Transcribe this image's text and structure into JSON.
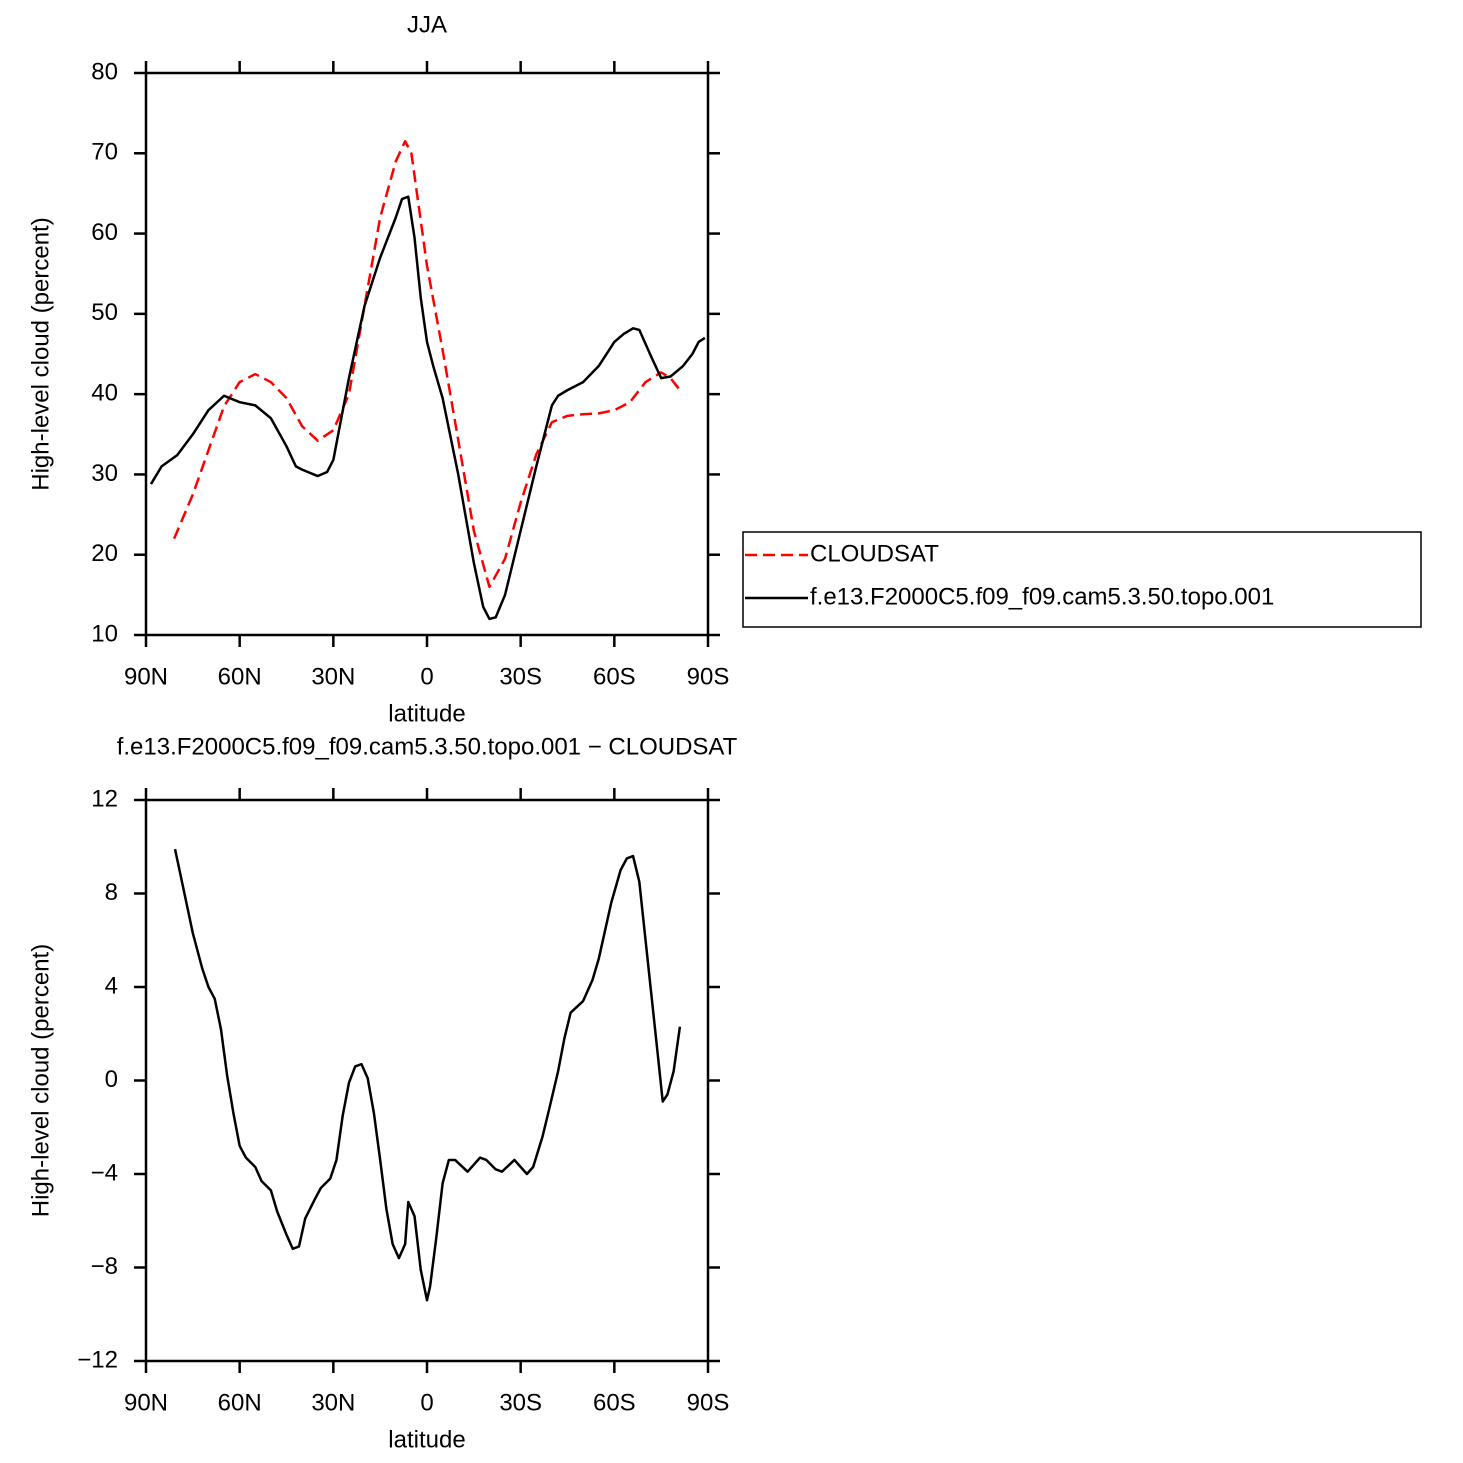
{
  "chart_data": [
    {
      "type": "line",
      "title": "JJA",
      "xlabel": "latitude",
      "ylabel": "High-level cloud (percent)",
      "xlim": [
        90,
        -90
      ],
      "xticks": [
        {
          "value": 90,
          "label": "90N"
        },
        {
          "value": 60,
          "label": "60N"
        },
        {
          "value": 30,
          "label": "30N"
        },
        0,
        {
          "value": -30,
          "label": "30S"
        },
        {
          "value": -60,
          "label": "60S"
        },
        {
          "value": -90,
          "label": "90S"
        }
      ],
      "ylim": [
        10,
        80
      ],
      "yticks": [
        10,
        20,
        30,
        40,
        50,
        60,
        70,
        80
      ],
      "legend": "right",
      "series": [
        {
          "name": "CLOUDSAT",
          "color": "#ff0000",
          "dashed": true,
          "x": [
            81,
            75,
            70,
            65,
            60,
            55,
            50,
            45,
            40,
            35,
            30,
            25,
            20,
            15,
            10,
            7,
            5,
            0,
            -5,
            -10,
            -15,
            -20,
            -25,
            -30,
            -35,
            -40,
            -45,
            -50,
            -55,
            -60,
            -65,
            -70,
            -75,
            -78,
            -81
          ],
          "values": [
            22,
            27.5,
            33,
            38.5,
            41.5,
            42.5,
            41.5,
            39.5,
            36,
            34.2,
            35.5,
            40,
            51,
            62,
            69,
            71.5,
            70,
            56,
            45.5,
            34.3,
            23,
            16,
            19.5,
            26.5,
            32.5,
            36.5,
            37.3,
            37.5,
            37.6,
            38,
            39,
            41.5,
            42.7,
            42,
            40.5
          ]
        },
        {
          "name": "f.e13.F2000C5.f09_f09.cam5.3.50.topo.001",
          "color": "#000000",
          "dashed": false,
          "x": [
            88.4,
            85,
            80,
            75,
            70,
            65,
            60,
            55,
            50,
            45,
            42,
            40,
            35,
            32,
            30,
            25,
            20,
            15,
            10,
            8,
            6,
            4,
            2,
            0,
            -2,
            -5,
            -10,
            -15,
            -18,
            -20,
            -22,
            -25,
            -30,
            -35,
            -40,
            -42,
            -45,
            -50,
            -55,
            -60,
            -63,
            -66,
            -68,
            -72,
            -75,
            -78,
            -82,
            -85,
            -87,
            -89
          ],
          "values": [
            28.8,
            31,
            32.4,
            35,
            38,
            39.8,
            39,
            38.6,
            37,
            33.5,
            31,
            30.6,
            29.8,
            30.3,
            31.8,
            42,
            51,
            57,
            62,
            64.3,
            64.6,
            59.5,
            52,
            46.5,
            43.5,
            39.5,
            30,
            19,
            13.5,
            12,
            12.2,
            15,
            23,
            31,
            38.6,
            39.8,
            40.5,
            41.5,
            43.5,
            46.5,
            47.5,
            48.2,
            48,
            44.5,
            42,
            42.2,
            43.5,
            45,
            46.5,
            47
          ]
        }
      ]
    },
    {
      "type": "line",
      "title": "f.e13.F2000C5.f09_f09.cam5.3.50.topo.001  −  CLOUDSAT",
      "xlabel": "latitude",
      "ylabel": "High-level cloud (percent)",
      "xlim": [
        90,
        -90
      ],
      "xticks": [
        {
          "value": 90,
          "label": "90N"
        },
        {
          "value": 60,
          "label": "60N"
        },
        {
          "value": 30,
          "label": "30N"
        },
        0,
        {
          "value": -30,
          "label": "30S"
        },
        {
          "value": -60,
          "label": "60S"
        },
        {
          "value": -90,
          "label": "90S"
        }
      ],
      "ylim": [
        -12,
        12
      ],
      "yticks": [
        {
          "value": -12,
          "label": "−12"
        },
        {
          "value": -8,
          "label": "−8"
        },
        {
          "value": -4,
          "label": "−4"
        },
        0,
        4,
        8,
        12
      ],
      "color": "#000000",
      "x": [
        80.7,
        78,
        75,
        72,
        70,
        68,
        66,
        64,
        62,
        60,
        58,
        55,
        53,
        50,
        48,
        45,
        43,
        41,
        39,
        36,
        34,
        31,
        29,
        27,
        25,
        23,
        21,
        19,
        17,
        15,
        13,
        11,
        9,
        7,
        6,
        4,
        2,
        0,
        -1,
        -3,
        -5,
        -7,
        -9,
        -13,
        -17,
        -19,
        -22,
        -24,
        -28,
        -32,
        -34,
        -37,
        -39,
        -42,
        -44,
        -46,
        -50,
        -53,
        -55,
        -59,
        -62,
        -64,
        -66,
        -68,
        -70,
        -72,
        -74,
        -75.5,
        -77,
        -79,
        -81
      ],
      "values": [
        9.9,
        8.2,
        6.3,
        4.8,
        4.0,
        3.5,
        2.2,
        0.2,
        -1.4,
        -2.8,
        -3.3,
        -3.7,
        -4.3,
        -4.7,
        -5.6,
        -6.6,
        -7.2,
        -7.1,
        -5.9,
        -5.1,
        -4.6,
        -4.2,
        -3.4,
        -1.5,
        -0.1,
        0.6,
        0.7,
        0.1,
        -1.4,
        -3.4,
        -5.5,
        -7.0,
        -7.6,
        -7.0,
        -5.2,
        -5.8,
        -8.1,
        -9.4,
        -8.8,
        -6.7,
        -4.4,
        -3.4,
        -3.4,
        -3.9,
        -3.3,
        -3.4,
        -3.8,
        -3.9,
        -3.4,
        -4.0,
        -3.7,
        -2.4,
        -1.3,
        0.4,
        1.8,
        2.9,
        3.4,
        4.3,
        5.2,
        7.6,
        9.0,
        9.5,
        9.6,
        8.5,
        6.0,
        3.5,
        1.0,
        -0.9,
        -0.6,
        0.4,
        2.3
      ]
    }
  ]
}
